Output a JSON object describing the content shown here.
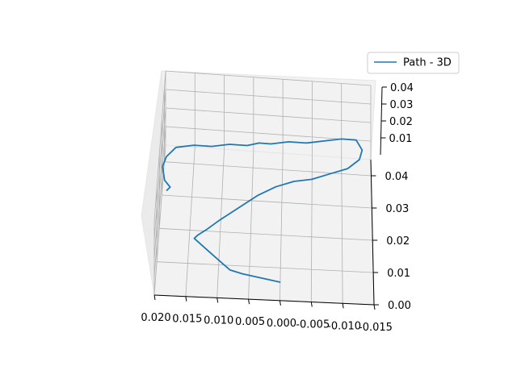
{
  "chart_data": {
    "type": "line",
    "projection": "3d",
    "title": "",
    "xlabel": "",
    "ylabel": "",
    "zlabel": "",
    "grid": true,
    "pane_color": "#f2f2f2",
    "legend": {
      "position": "top-right",
      "entries": [
        "Path - 3D"
      ]
    },
    "x_ticks": [
      "0.020",
      "0.015",
      "0.010",
      "0.005",
      "0.000",
      "-0.005",
      "-0.010",
      "-0.015"
    ],
    "y_ticks": [
      "0.00",
      "0.01",
      "0.02",
      "0.03",
      "0.04"
    ],
    "z_ticks": [
      "0.01",
      "0.02",
      "0.03",
      "0.04"
    ],
    "xlim": [
      0.02,
      -0.015
    ],
    "ylim": [
      0.0,
      0.045
    ],
    "zlim": [
      0.0,
      0.04
    ],
    "series": [
      {
        "name": "Path - 3D",
        "color": "#1f77b4",
        "x": [
          0.0,
          0.003,
          0.006,
          0.008,
          0.01,
          0.012,
          0.014,
          0.0135,
          0.012,
          0.01,
          0.007,
          0.004,
          0.001,
          -0.002,
          -0.005,
          -0.008,
          -0.011,
          -0.013,
          -0.0135,
          -0.0125,
          -0.01,
          -0.007,
          -0.004,
          -0.001,
          0.002,
          0.004,
          0.006,
          0.009,
          0.012,
          0.015,
          0.018,
          0.0195,
          0.02,
          0.0195,
          0.0185,
          0.019
        ],
        "y": [
          0.0,
          0.001,
          0.002,
          0.003,
          0.006,
          0.009,
          0.012,
          0.013,
          0.015,
          0.018,
          0.022,
          0.026,
          0.029,
          0.031,
          0.032,
          0.034,
          0.036,
          0.039,
          0.042,
          0.045,
          0.045,
          0.044,
          0.043,
          0.043,
          0.042,
          0.042,
          0.041,
          0.041,
          0.04,
          0.04,
          0.039,
          0.036,
          0.033,
          0.029,
          0.027,
          0.026
        ],
        "z": [
          0.01,
          0.01,
          0.01,
          0.01,
          0.01,
          0.01,
          0.01,
          0.01,
          0.01,
          0.01,
          0.01,
          0.01,
          0.01,
          0.01,
          0.01,
          0.01,
          0.01,
          0.01,
          0.01,
          0.01,
          0.01,
          0.01,
          0.01,
          0.01,
          0.01,
          0.01,
          0.01,
          0.01,
          0.01,
          0.01,
          0.01,
          0.01,
          0.01,
          0.01,
          0.01,
          0.01
        ]
      }
    ]
  }
}
